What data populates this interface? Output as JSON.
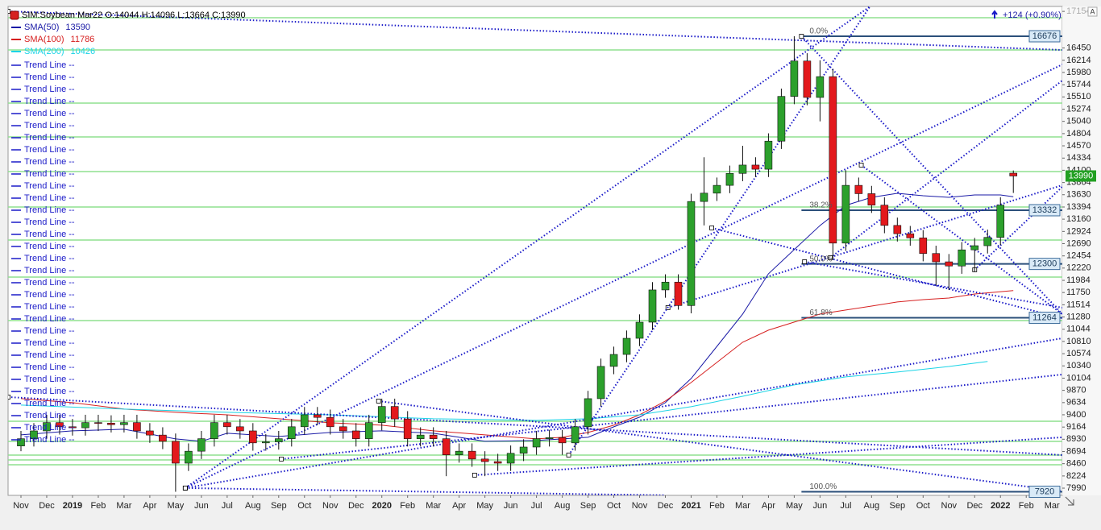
{
  "chart_data": {
    "type": "candlestick",
    "legend_title": "SIM:Soybean Mar22 O:14044 H:14096 L:13664 C:13990",
    "change": "+124 (+0.90%)",
    "axis_button": "A",
    "xlim": [
      -0.5,
      40.4
    ],
    "xticks": [
      {
        "value": 0,
        "label": "Nov"
      },
      {
        "value": 1,
        "label": "Dec"
      },
      {
        "value": 2,
        "label": "2019"
      },
      {
        "value": 3,
        "label": "Feb"
      },
      {
        "value": 4,
        "label": "Mar"
      },
      {
        "value": 5,
        "label": "Apr"
      },
      {
        "value": 6,
        "label": "May"
      },
      {
        "value": 7,
        "label": "Jun"
      },
      {
        "value": 8,
        "label": "Jul"
      },
      {
        "value": 9,
        "label": "Aug"
      },
      {
        "value": 10,
        "label": "Sep"
      },
      {
        "value": 11,
        "label": "Oct"
      },
      {
        "value": 12,
        "label": "Nov"
      },
      {
        "value": 13,
        "label": "Dec"
      },
      {
        "value": 14,
        "label": "2020"
      },
      {
        "value": 15,
        "label": "Feb"
      },
      {
        "value": 16,
        "label": "Mar"
      },
      {
        "value": 17,
        "label": "Apr"
      },
      {
        "value": 18,
        "label": "May"
      },
      {
        "value": 19,
        "label": "Jun"
      },
      {
        "value": 20,
        "label": "Jul"
      },
      {
        "value": 21,
        "label": "Aug"
      },
      {
        "value": 22,
        "label": "Sep"
      },
      {
        "value": 23,
        "label": "Oct"
      },
      {
        "value": 24,
        "label": "Nov"
      },
      {
        "value": 25,
        "label": "Dec"
      },
      {
        "value": 26,
        "label": "2021"
      },
      {
        "value": 27,
        "label": "Feb"
      },
      {
        "value": 28,
        "label": "Mar"
      },
      {
        "value": 29,
        "label": "Apr"
      },
      {
        "value": 30,
        "label": "May"
      },
      {
        "value": 31,
        "label": "Jun"
      },
      {
        "value": 32,
        "label": "Jul"
      },
      {
        "value": 33,
        "label": "Aug"
      },
      {
        "value": 34,
        "label": "Sep"
      },
      {
        "value": 35,
        "label": "Oct"
      },
      {
        "value": 36,
        "label": "Nov"
      },
      {
        "value": 37,
        "label": "Dec"
      },
      {
        "value": 38,
        "label": "2022"
      },
      {
        "value": 39,
        "label": "Feb"
      },
      {
        "value": 40,
        "label": "Mar"
      }
    ],
    "ylim": [
      7851,
      17249
    ],
    "yticks": [
      17154,
      16450,
      16214,
      15980,
      15744,
      15510,
      15274,
      15040,
      14804,
      14570,
      14334,
      14100,
      13864,
      13630,
      13394,
      13160,
      12924,
      12690,
      12454,
      12220,
      11984,
      11750,
      11514,
      11280,
      11044,
      10810,
      10574,
      10340,
      10104,
      9870,
      9634,
      9400,
      9164,
      8930,
      8694,
      8460,
      8224,
      7990
    ],
    "grid": false,
    "candles": {
      "up_color": "#2ca02c",
      "down_color": "#e3191c",
      "x": [
        0,
        0.5,
        1,
        1.5,
        2,
        2.5,
        3,
        3.5,
        4,
        4.5,
        5,
        5.5,
        6,
        6.5,
        7,
        7.5,
        8,
        8.5,
        9,
        9.5,
        10,
        10.5,
        11,
        11.5,
        12,
        12.5,
        13,
        13.5,
        14,
        14.5,
        15,
        15.5,
        16,
        16.5,
        17,
        17.5,
        18,
        18.5,
        19,
        19.5,
        20,
        20.5,
        21,
        21.5,
        22,
        22.5,
        23,
        23.5,
        24,
        24.5,
        25,
        25.5,
        26,
        26.5,
        27,
        27.5,
        28,
        28.5,
        29,
        29.5,
        30,
        30.5,
        31,
        31.5,
        32,
        32.5,
        33,
        33.5,
        34,
        34.5,
        35,
        35.5,
        36,
        36.5,
        37,
        37.5,
        38,
        38.5
      ],
      "open": [
        8800,
        8940,
        9090,
        9250,
        9170,
        9150,
        9250,
        9240,
        9210,
        9250,
        9090,
        9010,
        8890,
        8470,
        8700,
        8940,
        9250,
        9170,
        9090,
        8860,
        8880,
        8940,
        9170,
        9400,
        9350,
        9170,
        9090,
        8940,
        9250,
        9560,
        9320,
        8940,
        9010,
        8940,
        8630,
        8700,
        8550,
        8500,
        8470,
        8660,
        8780,
        8940,
        8960,
        8860,
        9170,
        9710,
        10330,
        10560,
        10870,
        11180,
        11800,
        11950,
        11500,
        13500,
        13660,
        13810,
        14040,
        14200,
        14120,
        14660,
        15520,
        16200,
        15500,
        15900,
        12700,
        13810,
        13650,
        13430,
        13040,
        12880,
        12800,
        12500,
        12340,
        12260,
        12570,
        12650,
        12810,
        14044
      ],
      "high": [
        9090,
        9240,
        9400,
        9400,
        9320,
        9400,
        9400,
        9390,
        9400,
        9400,
        9240,
        9160,
        9040,
        8850,
        9090,
        9400,
        9400,
        9320,
        9240,
        9030,
        9090,
        9320,
        9550,
        9550,
        9500,
        9320,
        9240,
        9400,
        9710,
        9710,
        9470,
        9160,
        9160,
        9090,
        8850,
        8850,
        8700,
        8650,
        8810,
        8930,
        9090,
        9110,
        9110,
        9320,
        9860,
        10480,
        10710,
        11020,
        11330,
        11950,
        12100,
        12100,
        13650,
        14350,
        13960,
        14190,
        14570,
        14350,
        14810,
        15670,
        16676,
        16350,
        16214,
        16050,
        14100,
        13960,
        13800,
        13580,
        13190,
        13030,
        12950,
        12650,
        12490,
        12720,
        12800,
        12960,
        13580,
        14096
      ],
      "low": [
        8700,
        8790,
        8940,
        9020,
        9000,
        9000,
        9090,
        9060,
        9060,
        8940,
        8860,
        8740,
        7920,
        8320,
        8550,
        8790,
        9020,
        8940,
        8710,
        8710,
        8730,
        8790,
        9020,
        9200,
        9020,
        8940,
        8790,
        8790,
        9100,
        9170,
        8790,
        8790,
        8790,
        8220,
        8480,
        8400,
        8220,
        8320,
        8320,
        8510,
        8630,
        8790,
        8630,
        8710,
        9020,
        9560,
        10180,
        10410,
        10720,
        11030,
        11650,
        11420,
        11350,
        13040,
        13510,
        13660,
        13890,
        13970,
        13970,
        14510,
        15370,
        15350,
        15040,
        12380,
        12550,
        13500,
        13280,
        12890,
        12730,
        12650,
        12350,
        11880,
        11800,
        12110,
        12150,
        12500,
        12660,
        13664
      ],
      "close": [
        8940,
        9090,
        9250,
        9170,
        9150,
        9250,
        9240,
        9210,
        9250,
        9090,
        9010,
        8890,
        8470,
        8700,
        8940,
        9250,
        9170,
        9090,
        8860,
        8880,
        8940,
        9170,
        9400,
        9350,
        9170,
        9090,
        8940,
        9250,
        9560,
        9320,
        8940,
        9010,
        8940,
        8630,
        8700,
        8550,
        8500,
        8470,
        8660,
        8780,
        8940,
        8960,
        8860,
        9170,
        9710,
        10330,
        10560,
        10870,
        11180,
        11800,
        11950,
        11500,
        13500,
        13660,
        13810,
        14040,
        14200,
        14120,
        14660,
        15520,
        16200,
        15500,
        15900,
        12700,
        13810,
        13650,
        13430,
        13040,
        12880,
        12800,
        12500,
        12340,
        12260,
        12570,
        12650,
        12810,
        13430,
        13990
      ]
    },
    "last_price": 13990,
    "series": [
      {
        "name": "SMA(50)",
        "color": "#1a1aa6",
        "last": 13590,
        "x": [
          0,
          2,
          4,
          6,
          7,
          8,
          10,
          12,
          14,
          16,
          18,
          20,
          22,
          23,
          24,
          25,
          26,
          27,
          28,
          29,
          30,
          31,
          32,
          33,
          34,
          35,
          36,
          37,
          38,
          38.5
        ],
        "values": [
          9013,
          9091,
          9122,
          8936,
          8890,
          9044,
          8983,
          9060,
          9091,
          9044,
          8890,
          8905,
          8967,
          9168,
          9354,
          9633,
          10097,
          10716,
          11336,
          12110,
          12574,
          13038,
          13425,
          13580,
          13657,
          13611,
          13580,
          13626,
          13626,
          13590
        ]
      },
      {
        "name": "SMA(100)",
        "color": "#d62020",
        "last": 11786,
        "x": [
          0,
          2,
          4,
          6,
          8,
          10,
          12,
          14,
          16,
          18,
          20,
          21,
          22,
          23,
          24,
          25,
          26,
          27,
          28,
          29,
          30,
          31,
          32,
          33,
          34,
          35,
          36,
          37,
          38.5
        ],
        "values": [
          9710,
          9633,
          9509,
          9447,
          9400,
          9323,
          9246,
          9199,
          9091,
          9013,
          8936,
          8967,
          9060,
          9199,
          9400,
          9664,
          10020,
          10407,
          10794,
          11026,
          11181,
          11336,
          11413,
          11490,
          11568,
          11614,
          11645,
          11722,
          11786
        ]
      },
      {
        "name": "SMA(200)",
        "color": "#1ad4e6",
        "last": 10426,
        "x": [
          0,
          4,
          8,
          12,
          16,
          20,
          22,
          24,
          26,
          28,
          30,
          32,
          34,
          36,
          37.5
        ],
        "values": [
          9586,
          9509,
          9447,
          9400,
          9323,
          9292,
          9323,
          9400,
          9555,
          9756,
          9973,
          10128,
          10221,
          10329,
          10426
        ]
      }
    ],
    "trend_line_legend": [
      "Trend Line --",
      "Trend Line --",
      "Trend Line --",
      "Trend Line --",
      "Trend Line --",
      "Trend Line --",
      "Trend Line --",
      "Trend Line --",
      "Trend Line --",
      "Trend Line --",
      "Trend Line --",
      "Trend Line --",
      "Trend Line --",
      "Trend Line --",
      "Trend Line --",
      "Trend Line --",
      "Trend Line --",
      "Trend Line --",
      "Trend Line --",
      "Trend Line --",
      "Trend Line --",
      "Trend Line --",
      "Trend Line --",
      "Trend Line --",
      "Trend Line --",
      "Trend Line --",
      "Trend Line --",
      "Trend Line --",
      "Trend Line --",
      "Trend Line --",
      "Trend Line --",
      "Trend Line --"
    ],
    "trend_color": "#1a1ac8",
    "trend_lines": [
      {
        "x": [
          -0.5,
          40.4
        ],
        "y": [
          17156,
          16413
        ]
      },
      {
        "x": [
          6.375,
          32.94
        ],
        "y": [
          7992,
          17249
        ]
      },
      {
        "x": [
          6.375,
          40.4
        ],
        "y": [
          7992,
          16134
        ]
      },
      {
        "x": [
          6.375,
          40.4
        ],
        "y": [
          7992,
          10871
        ]
      },
      {
        "x": [
          6.375,
          24.97
        ],
        "y": [
          7992,
          7852
        ]
      },
      {
        "x": [
          30.28,
          40.4
        ],
        "y": [
          16676,
          11336
        ]
      },
      {
        "x": [
          13.875,
          40.4
        ],
        "y": [
          9664,
          7930
        ]
      },
      {
        "x": [
          17.6,
          40.4
        ],
        "y": [
          8240,
          8967
        ]
      },
      {
        "x": [
          25.1,
          40.4
        ],
        "y": [
          11459,
          13813
        ]
      },
      {
        "x": [
          21.25,
          32.94
        ],
        "y": [
          8626,
          17249
        ]
      },
      {
        "x": [
          26.8,
          40.4
        ],
        "y": [
          12992,
          11258
        ]
      },
      {
        "x": [
          32.6,
          40.4
        ],
        "y": [
          14200,
          11336
        ]
      },
      {
        "x": [
          30.4,
          40.4
        ],
        "y": [
          12342,
          11459
        ]
      },
      {
        "x": [
          10.1,
          40.4
        ],
        "y": [
          8549,
          10174
        ]
      },
      {
        "x": [
          37,
          40.4
        ],
        "y": [
          12187,
          13782
        ]
      },
      {
        "x": [
          31.4,
          40.4
        ],
        "y": [
          12419,
          15825
        ]
      },
      {
        "x": [
          -0.5,
          40.4
        ],
        "y": [
          9741,
          8626
        ]
      }
    ],
    "level_color": "#8fe08f",
    "levels": [
      17032,
      16413,
      15391,
      14741,
      14075,
      13394,
      12759,
      12047,
      11211,
      9276,
      8889,
      8626,
      8533,
      8440
    ],
    "fib_start_x": 30.28,
    "fibonacci": [
      {
        "label": "0.0%",
        "value": 16676
      },
      {
        "label": "38.2%",
        "value": 13332
      },
      {
        "label": "50.0%",
        "value": 12300
      },
      {
        "label": "61.8%",
        "value": 11264
      },
      {
        "label": "100.0%",
        "value": 7920
      }
    ]
  }
}
